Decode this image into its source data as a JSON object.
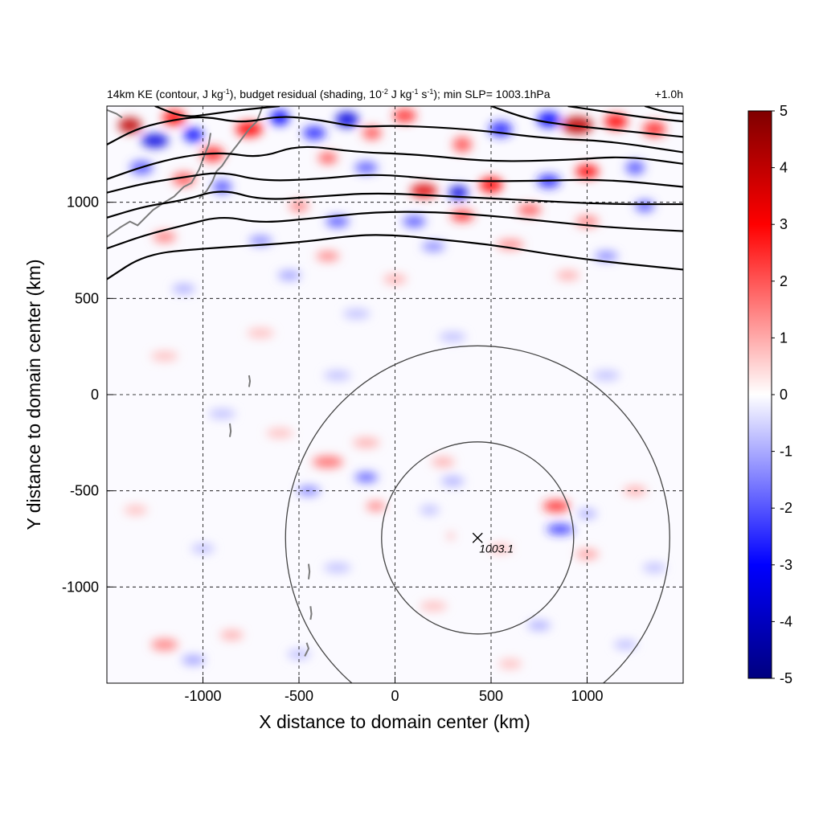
{
  "chart_data": {
    "type": "heatmap",
    "title": {
      "main_1": "14km KE (contour, J kg",
      "sup_1": "-1",
      "main_2": "), budget residual (shading, 10",
      "sup_2": "-2",
      "main_3": " J kg",
      "sup_3": "-1",
      "main_4": " s",
      "sup_4": "-1",
      "main_5": "); min SLP= 1003.1hPa"
    },
    "time_label": "+1.0h",
    "xlabel": "X distance to domain center (km)",
    "ylabel": "Y distance to domain center (km)",
    "xlim": [
      -1500,
      1500
    ],
    "ylim": [
      -1500,
      1500
    ],
    "x_ticks": [
      -1000,
      -500,
      0,
      500,
      1000
    ],
    "y_ticks": [
      -1000,
      -500,
      0,
      500,
      1000
    ],
    "x_tick_labels": [
      "-1000",
      "-500",
      "0",
      "500",
      "1000"
    ],
    "y_tick_labels": [
      "-1000",
      "-500",
      "0",
      "500",
      "1000"
    ],
    "grid": true,
    "colorbar": {
      "min": -5,
      "max": 5,
      "ticks": [
        5,
        4,
        3,
        2,
        1,
        0,
        -1,
        -2,
        -3,
        -4,
        -5
      ],
      "tick_labels": [
        "5",
        "4",
        "3",
        "2",
        "1",
        "0",
        "-1",
        "-2",
        "-3",
        "-4",
        "-5"
      ],
      "colors": [
        "#00007f",
        "#0000ff",
        "#ffffff",
        "#ff0000",
        "#7f0000"
      ]
    },
    "storm_center": {
      "x": 430,
      "y": -745,
      "label": "1003.1"
    },
    "range_circles_km": [
      500,
      1000
    ],
    "ke_contours": [
      {
        "points": [
          [
            -1500,
            600
          ],
          [
            -1300,
            730
          ],
          [
            -1000,
            760
          ],
          [
            -500,
            790
          ],
          [
            -200,
            830
          ],
          [
            0,
            830
          ],
          [
            200,
            810
          ],
          [
            500,
            780
          ],
          [
            800,
            730
          ],
          [
            1100,
            690
          ],
          [
            1500,
            650
          ]
        ]
      },
      {
        "points": [
          [
            -1500,
            760
          ],
          [
            -1300,
            830
          ],
          [
            -1100,
            880
          ],
          [
            -900,
            930
          ],
          [
            -700,
            890
          ],
          [
            -400,
            920
          ],
          [
            -100,
            950
          ],
          [
            200,
            950
          ],
          [
            500,
            930
          ],
          [
            800,
            900
          ],
          [
            1100,
            870
          ],
          [
            1500,
            850
          ]
        ]
      },
      {
        "points": [
          [
            -1500,
            920
          ],
          [
            -1300,
            980
          ],
          [
            -1100,
            1010
          ],
          [
            -900,
            1070
          ],
          [
            -700,
            1010
          ],
          [
            -400,
            1030
          ],
          [
            -100,
            1050
          ],
          [
            300,
            1030
          ],
          [
            700,
            1010
          ],
          [
            1100,
            990
          ],
          [
            1500,
            990
          ]
        ]
      },
      {
        "points": [
          [
            -1500,
            1050
          ],
          [
            -1300,
            1100
          ],
          [
            -1100,
            1130
          ],
          [
            -900,
            1160
          ],
          [
            -700,
            1110
          ],
          [
            -400,
            1120
          ],
          [
            -100,
            1150
          ],
          [
            300,
            1110
          ],
          [
            700,
            1110
          ],
          [
            1100,
            1120
          ],
          [
            1500,
            1080
          ]
        ]
      },
      {
        "points": [
          [
            -1500,
            1120
          ],
          [
            -1300,
            1190
          ],
          [
            -1100,
            1240
          ],
          [
            -900,
            1260
          ],
          [
            -700,
            1230
          ],
          [
            -500,
            1300
          ],
          [
            -200,
            1260
          ],
          [
            100,
            1250
          ],
          [
            500,
            1210
          ],
          [
            900,
            1220
          ],
          [
            1200,
            1240
          ],
          [
            1500,
            1200
          ]
        ]
      },
      {
        "points": [
          [
            -1500,
            1300
          ],
          [
            -1350,
            1380
          ],
          [
            -1200,
            1420
          ],
          [
            -1000,
            1450
          ],
          [
            -800,
            1410
          ],
          [
            -600,
            1450
          ],
          [
            -400,
            1430
          ],
          [
            -200,
            1390
          ],
          [
            0,
            1400
          ],
          [
            400,
            1380
          ],
          [
            800,
            1330
          ],
          [
            1100,
            1320
          ],
          [
            1500,
            1260
          ]
        ]
      },
      {
        "points": [
          [
            -1250,
            1500
          ],
          [
            -1100,
            1440
          ],
          [
            -950,
            1460
          ],
          [
            -800,
            1480
          ],
          [
            -600,
            1500
          ]
        ]
      },
      {
        "points": [
          [
            500,
            1500
          ],
          [
            700,
            1430
          ],
          [
            900,
            1400
          ],
          [
            1200,
            1370
          ],
          [
            1500,
            1340
          ]
        ]
      },
      {
        "points": [
          [
            900,
            1500
          ],
          [
            1100,
            1470
          ],
          [
            1300,
            1440
          ],
          [
            1500,
            1420
          ]
        ]
      },
      {
        "points": [
          [
            1300,
            1500
          ],
          [
            1400,
            1470
          ],
          [
            1500,
            1460
          ]
        ]
      }
    ],
    "residual_cells": [
      {
        "x": -1380,
        "y": 1400,
        "rx": 60,
        "ry": 40,
        "v": 4
      },
      {
        "x": -1250,
        "y": 1320,
        "rx": 70,
        "ry": 35,
        "v": -3.5
      },
      {
        "x": -1150,
        "y": 1440,
        "rx": 60,
        "ry": 40,
        "v": 3
      },
      {
        "x": -1050,
        "y": 1350,
        "rx": 50,
        "ry": 35,
        "v": -3
      },
      {
        "x": -950,
        "y": 1250,
        "rx": 60,
        "ry": 40,
        "v": 2.5
      },
      {
        "x": -1320,
        "y": 1180,
        "rx": 60,
        "ry": 35,
        "v": -2
      },
      {
        "x": -1100,
        "y": 1120,
        "rx": 60,
        "ry": 35,
        "v": 2
      },
      {
        "x": -900,
        "y": 1080,
        "rx": 50,
        "ry": 35,
        "v": -2
      },
      {
        "x": -760,
        "y": 1380,
        "rx": 70,
        "ry": 40,
        "v": 3
      },
      {
        "x": -600,
        "y": 1440,
        "rx": 50,
        "ry": 40,
        "v": -3
      },
      {
        "x": -420,
        "y": 1360,
        "rx": 60,
        "ry": 35,
        "v": -2.5
      },
      {
        "x": -250,
        "y": 1430,
        "rx": 60,
        "ry": 40,
        "v": -3.5
      },
      {
        "x": -120,
        "y": 1360,
        "rx": 50,
        "ry": 35,
        "v": 2
      },
      {
        "x": 50,
        "y": 1450,
        "rx": 60,
        "ry": 35,
        "v": 2.5
      },
      {
        "x": -350,
        "y": 1230,
        "rx": 50,
        "ry": 30,
        "v": 2
      },
      {
        "x": -150,
        "y": 1180,
        "rx": 60,
        "ry": 30,
        "v": -2
      },
      {
        "x": 150,
        "y": 1060,
        "rx": 70,
        "ry": 35,
        "v": 3.5
      },
      {
        "x": 330,
        "y": 1050,
        "rx": 50,
        "ry": 35,
        "v": -3.5
      },
      {
        "x": 500,
        "y": 1090,
        "rx": 60,
        "ry": 40,
        "v": 3
      },
      {
        "x": 350,
        "y": 1300,
        "rx": 50,
        "ry": 40,
        "v": 2
      },
      {
        "x": 550,
        "y": 1380,
        "rx": 60,
        "ry": 40,
        "v": -2.5
      },
      {
        "x": 800,
        "y": 1430,
        "rx": 60,
        "ry": 40,
        "v": -3
      },
      {
        "x": 950,
        "y": 1400,
        "rx": 80,
        "ry": 45,
        "v": 4
      },
      {
        "x": 1150,
        "y": 1420,
        "rx": 60,
        "ry": 40,
        "v": 3
      },
      {
        "x": 1350,
        "y": 1380,
        "rx": 60,
        "ry": 40,
        "v": 2.5
      },
      {
        "x": 800,
        "y": 1110,
        "rx": 60,
        "ry": 35,
        "v": -2.5
      },
      {
        "x": 1000,
        "y": 1160,
        "rx": 60,
        "ry": 35,
        "v": 3
      },
      {
        "x": 1250,
        "y": 1180,
        "rx": 50,
        "ry": 35,
        "v": -2
      },
      {
        "x": 700,
        "y": 960,
        "rx": 60,
        "ry": 30,
        "v": 2
      },
      {
        "x": 350,
        "y": 930,
        "rx": 60,
        "ry": 30,
        "v": 2.5
      },
      {
        "x": 100,
        "y": 900,
        "rx": 60,
        "ry": 30,
        "v": -2
      },
      {
        "x": -300,
        "y": 900,
        "rx": 60,
        "ry": 30,
        "v": -2
      },
      {
        "x": -500,
        "y": 980,
        "rx": 50,
        "ry": 30,
        "v": 1.5
      },
      {
        "x": 1000,
        "y": 900,
        "rx": 60,
        "ry": 30,
        "v": 1.5
      },
      {
        "x": 1300,
        "y": 980,
        "rx": 50,
        "ry": 30,
        "v": -2
      },
      {
        "x": -1200,
        "y": 820,
        "rx": 60,
        "ry": 30,
        "v": 1.5
      },
      {
        "x": -700,
        "y": 800,
        "rx": 60,
        "ry": 25,
        "v": -1.5
      },
      {
        "x": -350,
        "y": 720,
        "rx": 60,
        "ry": 25,
        "v": 1.5
      },
      {
        "x": 200,
        "y": 770,
        "rx": 60,
        "ry": 25,
        "v": -1.5
      },
      {
        "x": 600,
        "y": 780,
        "rx": 70,
        "ry": 25,
        "v": 1.5
      },
      {
        "x": 1100,
        "y": 720,
        "rx": 60,
        "ry": 25,
        "v": -1.5
      },
      {
        "x": -550,
        "y": 620,
        "rx": 60,
        "ry": 25,
        "v": -1.2
      },
      {
        "x": 0,
        "y": 600,
        "rx": 60,
        "ry": 25,
        "v": 1
      },
      {
        "x": 900,
        "y": 620,
        "rx": 60,
        "ry": 25,
        "v": 1
      },
      {
        "x": -1100,
        "y": 550,
        "rx": 60,
        "ry": 25,
        "v": -1
      },
      {
        "x": -200,
        "y": 420,
        "rx": 70,
        "ry": 25,
        "v": -0.8
      },
      {
        "x": -700,
        "y": 320,
        "rx": 70,
        "ry": 25,
        "v": 0.8
      },
      {
        "x": 300,
        "y": 300,
        "rx": 70,
        "ry": 25,
        "v": -0.8
      },
      {
        "x": -1200,
        "y": 200,
        "rx": 70,
        "ry": 25,
        "v": 0.8
      },
      {
        "x": -300,
        "y": 100,
        "rx": 70,
        "ry": 25,
        "v": -0.8
      },
      {
        "x": 1100,
        "y": 100,
        "rx": 70,
        "ry": 25,
        "v": -0.8
      },
      {
        "x": -900,
        "y": -100,
        "rx": 70,
        "ry": 25,
        "v": -0.8
      },
      {
        "x": -600,
        "y": -200,
        "rx": 70,
        "ry": 25,
        "v": 0.8
      },
      {
        "x": -150,
        "y": -250,
        "rx": 70,
        "ry": 25,
        "v": 1
      },
      {
        "x": -350,
        "y": -350,
        "rx": 80,
        "ry": 30,
        "v": 1.8
      },
      {
        "x": -150,
        "y": -430,
        "rx": 60,
        "ry": 25,
        "v": -2
      },
      {
        "x": -450,
        "y": -500,
        "rx": 60,
        "ry": 25,
        "v": -1.5
      },
      {
        "x": -100,
        "y": -580,
        "rx": 50,
        "ry": 25,
        "v": 1.5
      },
      {
        "x": 250,
        "y": -350,
        "rx": 60,
        "ry": 25,
        "v": 1
      },
      {
        "x": 300,
        "y": -450,
        "rx": 60,
        "ry": 25,
        "v": -1
      },
      {
        "x": 180,
        "y": -600,
        "rx": 50,
        "ry": 25,
        "v": -0.8
      },
      {
        "x": 290,
        "y": -735,
        "rx": 15,
        "ry": 15,
        "v": 1.5
      },
      {
        "x": 550,
        "y": -800,
        "rx": 60,
        "ry": 25,
        "v": 0.8
      },
      {
        "x": 840,
        "y": -580,
        "rx": 70,
        "ry": 30,
        "v": 2.5
      },
      {
        "x": 860,
        "y": -700,
        "rx": 70,
        "ry": 25,
        "v": -2.5
      },
      {
        "x": 1000,
        "y": -830,
        "rx": 60,
        "ry": 25,
        "v": 1.2
      },
      {
        "x": 1000,
        "y": -620,
        "rx": 50,
        "ry": 25,
        "v": -1
      },
      {
        "x": 1250,
        "y": -500,
        "rx": 60,
        "ry": 25,
        "v": 1
      },
      {
        "x": 1350,
        "y": -900,
        "rx": 60,
        "ry": 25,
        "v": -0.8
      },
      {
        "x": -1350,
        "y": -600,
        "rx": 60,
        "ry": 25,
        "v": 0.8
      },
      {
        "x": -1000,
        "y": -800,
        "rx": 60,
        "ry": 25,
        "v": -0.8
      },
      {
        "x": -300,
        "y": -900,
        "rx": 70,
        "ry": 25,
        "v": -0.8
      },
      {
        "x": 200,
        "y": -1100,
        "rx": 70,
        "ry": 25,
        "v": 0.8
      },
      {
        "x": 750,
        "y": -1200,
        "rx": 60,
        "ry": 25,
        "v": -1
      },
      {
        "x": -1200,
        "y": -1300,
        "rx": 70,
        "ry": 30,
        "v": 1.5
      },
      {
        "x": -1050,
        "y": -1380,
        "rx": 60,
        "ry": 25,
        "v": -1.2
      },
      {
        "x": -850,
        "y": -1250,
        "rx": 60,
        "ry": 25,
        "v": 1
      },
      {
        "x": -500,
        "y": -1350,
        "rx": 60,
        "ry": 25,
        "v": -0.8
      },
      {
        "x": 600,
        "y": -1400,
        "rx": 60,
        "ry": 25,
        "v": 0.8
      },
      {
        "x": 1200,
        "y": -1300,
        "rx": 60,
        "ry": 25,
        "v": -0.8
      }
    ],
    "coastlines": [
      {
        "points": [
          [
            -1500,
            820
          ],
          [
            -1430,
            870
          ],
          [
            -1380,
            900
          ],
          [
            -1340,
            880
          ],
          [
            -1300,
            920
          ],
          [
            -1260,
            960
          ],
          [
            -1200,
            1000
          ],
          [
            -1150,
            1030
          ],
          [
            -1100,
            1080
          ],
          [
            -1060,
            1100
          ]
        ]
      },
      {
        "points": [
          [
            -1020,
            1020
          ],
          [
            -980,
            1060
          ],
          [
            -950,
            1110
          ],
          [
            -930,
            1160
          ],
          [
            -900,
            1190
          ],
          [
            -860,
            1250
          ],
          [
            -820,
            1300
          ],
          [
            -790,
            1340
          ],
          [
            -760,
            1380
          ],
          [
            -720,
            1420
          ],
          [
            -700,
            1470
          ],
          [
            -690,
            1500
          ]
        ]
      },
      {
        "points": [
          [
            -1060,
            1100
          ],
          [
            -1020,
            1170
          ],
          [
            -990,
            1250
          ],
          [
            -970,
            1300
          ],
          [
            -960,
            1360
          ]
        ]
      },
      {
        "points": [
          [
            -1500,
            1480
          ],
          [
            -1450,
            1460
          ],
          [
            -1420,
            1440
          ]
        ]
      },
      {
        "points": [
          [
            -760,
            100
          ],
          [
            -755,
            70
          ],
          [
            -760,
            40
          ]
        ]
      },
      {
        "points": [
          [
            -860,
            -150
          ],
          [
            -855,
            -190
          ],
          [
            -860,
            -220
          ]
        ]
      },
      {
        "points": [
          [
            -450,
            -880
          ],
          [
            -445,
            -920
          ],
          [
            -450,
            -960
          ]
        ]
      },
      {
        "points": [
          [
            -440,
            -1100
          ],
          [
            -435,
            -1140
          ],
          [
            -440,
            -1170
          ]
        ]
      },
      {
        "points": [
          [
            -460,
            -1290
          ],
          [
            -450,
            -1320
          ],
          [
            -470,
            -1360
          ]
        ]
      }
    ]
  }
}
